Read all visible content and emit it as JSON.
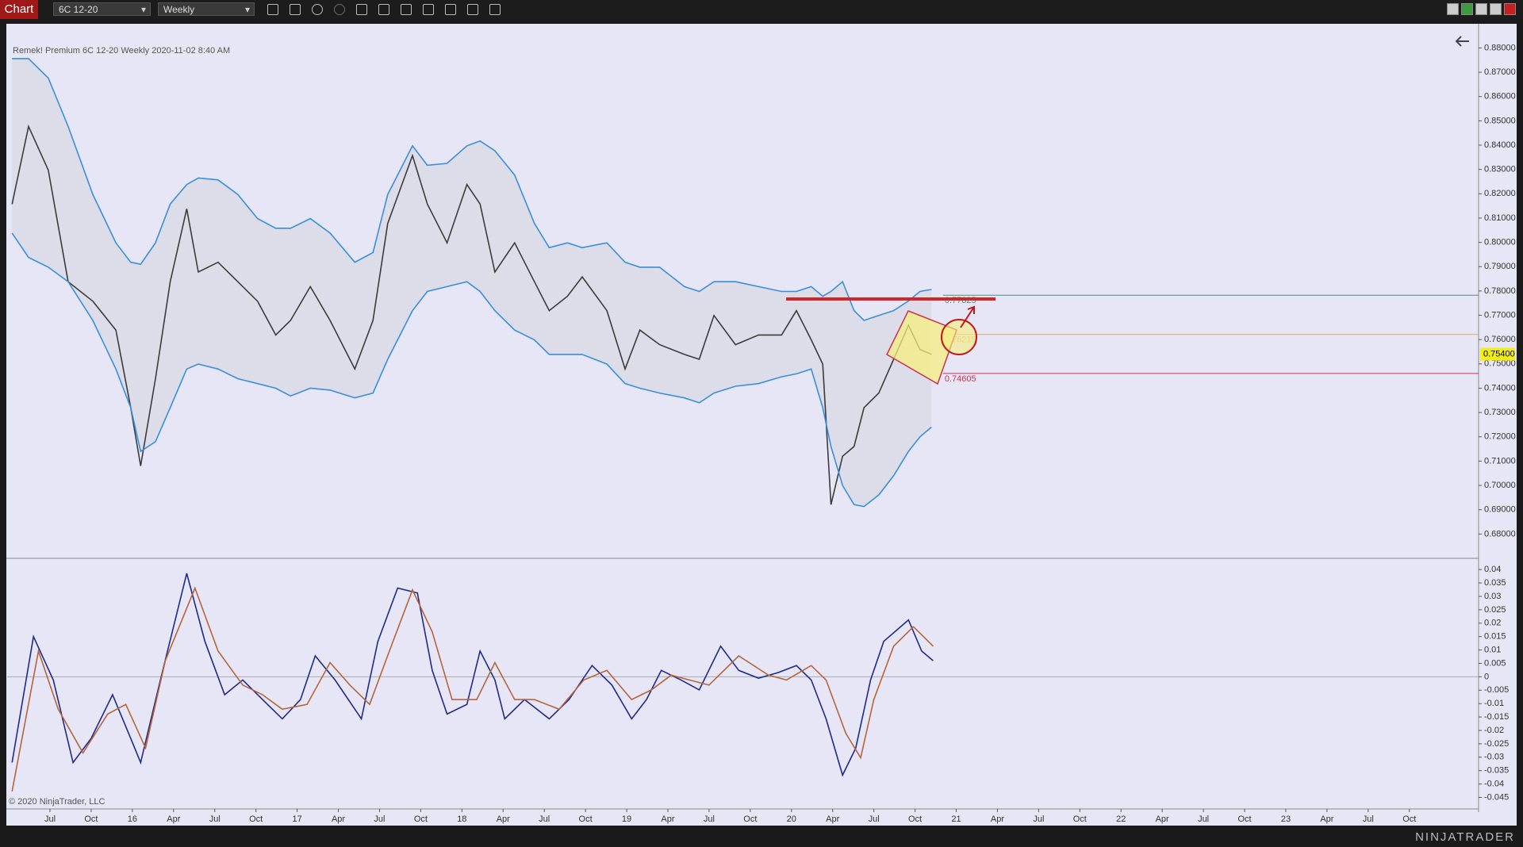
{
  "toolbar": {
    "title": "Chart",
    "instrument": "6C 12-20",
    "period": "Weekly"
  },
  "header": "Remek!  Premium  6C 12-20  Weekly  2020-11-02 8:40 AM",
  "copyright": "© 2020 NinjaTrader, LLC",
  "logo": "NINJATRADER",
  "chart_data": [
    {
      "type": "line",
      "x": [
        2015.27,
        2015.37,
        2015.49,
        2015.61,
        2015.76,
        2015.9,
        2015.99,
        2016.05,
        2016.14,
        2016.23,
        2016.33,
        2016.4,
        2016.52,
        2016.64,
        2016.76,
        2016.87,
        2016.96,
        2017.08,
        2017.2,
        2017.35,
        2017.46,
        2017.55,
        2017.7,
        2017.79,
        2017.91,
        2018.03,
        2018.11,
        2018.2,
        2018.32,
        2018.44,
        2018.53,
        2018.64,
        2018.73,
        2018.88,
        2018.99,
        2019.08,
        2019.2,
        2019.35,
        2019.44,
        2019.53,
        2019.66,
        2019.8,
        2019.94,
        2020.03,
        2020.12,
        2020.19,
        2020.24,
        2020.31,
        2020.38,
        2020.44,
        2020.53,
        2020.62,
        2020.71,
        2020.78,
        2020.85
      ],
      "series": [
        {
          "color": "#3b3b3b",
          "values": [
            0.8157,
            0.8477,
            0.8297,
            0.7838,
            0.7758,
            0.7639,
            0.732,
            0.708,
            0.7439,
            0.7838,
            0.8138,
            0.7878,
            0.7918,
            0.7838,
            0.7758,
            0.7619,
            0.7679,
            0.7818,
            0.7679,
            0.7479,
            0.7679,
            0.8078,
            0.8357,
            0.8158,
            0.7998,
            0.8238,
            0.8158,
            0.7878,
            0.7998,
            0.7838,
            0.7719,
            0.7778,
            0.7858,
            0.7719,
            0.7479,
            0.7639,
            0.7579,
            0.7539,
            0.7519,
            0.7699,
            0.7579,
            0.7619,
            0.7619,
            0.7719,
            0.7599,
            0.7499,
            0.6921,
            0.712,
            0.716,
            0.732,
            0.738,
            0.7519,
            0.7659,
            0.7559,
            0.754
          ]
        },
        {
          "color": "#3a8fd8",
          "values": [
            0.8756,
            0.8756,
            0.8676,
            0.8477,
            0.8197,
            0.7998,
            0.7918,
            0.791,
            0.7998,
            0.8158,
            0.8238,
            0.8265,
            0.8257,
            0.8197,
            0.8098,
            0.8058,
            0.8058,
            0.8098,
            0.8038,
            0.7918,
            0.7958,
            0.8197,
            0.8397,
            0.8317,
            0.8325,
            0.8397,
            0.8417,
            0.8377,
            0.8277,
            0.8078,
            0.7978,
            0.7998,
            0.7978,
            0.7998,
            0.7918,
            0.7898,
            0.7898,
            0.7818,
            0.7798,
            0.7838,
            0.7838,
            0.7818,
            0.7798,
            0.7798,
            0.7818,
            0.7778,
            0.7798,
            0.7838,
            0.7719,
            0.7679,
            0.7699,
            0.7719,
            0.7759,
            0.7798,
            0.7806
          ]
        },
        {
          "color": "#3a8fd8",
          "values": [
            0.8038,
            0.7938,
            0.7898,
            0.7838,
            0.7679,
            0.7479,
            0.732,
            0.714,
            0.718,
            0.732,
            0.7479,
            0.7499,
            0.7479,
            0.7439,
            0.7419,
            0.74,
            0.7368,
            0.74,
            0.7392,
            0.736,
            0.738,
            0.7519,
            0.7719,
            0.7798,
            0.7818,
            0.7838,
            0.7798,
            0.7719,
            0.7639,
            0.7599,
            0.7539,
            0.7539,
            0.7539,
            0.7499,
            0.7419,
            0.74,
            0.738,
            0.736,
            0.734,
            0.738,
            0.7408,
            0.7419,
            0.7447,
            0.7459,
            0.7479,
            0.732,
            0.716,
            0.7,
            0.6921,
            0.6913,
            0.6961,
            0.704,
            0.714,
            0.72,
            0.724
          ]
        }
      ],
      "band_fill": "#d9d9e4",
      "levels": [
        {
          "value": 0.77825,
          "color": "#4f8f7a"
        },
        {
          "value": 0.76215,
          "color": "#e0b060"
        },
        {
          "value": 0.74605,
          "color": "#d03050"
        }
      ],
      "last_price": {
        "value": 0.754,
        "label": "0.75400"
      },
      "xlim": [
        2015.24,
        2024.17
      ],
      "ylim": [
        0.67,
        0.8896
      ],
      "yticks": [
        {
          "value": 0.68,
          "label": "0.68000"
        },
        {
          "value": 0.69,
          "label": "0.69000"
        },
        {
          "value": 0.7,
          "label": "0.70000"
        },
        {
          "value": 0.71,
          "label": "0.71000"
        },
        {
          "value": 0.72,
          "label": "0.72000"
        },
        {
          "value": 0.73,
          "label": "0.73000"
        },
        {
          "value": 0.74,
          "label": "0.74000"
        },
        {
          "value": 0.75,
          "label": "0.75000"
        },
        {
          "value": 0.76,
          "label": "0.76000"
        },
        {
          "value": 0.77,
          "label": "0.77000"
        },
        {
          "value": 0.78,
          "label": "0.78000"
        },
        {
          "value": 0.79,
          "label": "0.79000"
        },
        {
          "value": 0.8,
          "label": "0.80000"
        },
        {
          "value": 0.81,
          "label": "0.81000"
        },
        {
          "value": 0.82,
          "label": "0.82000"
        },
        {
          "value": 0.83,
          "label": "0.83000"
        },
        {
          "value": 0.84,
          "label": "0.84000"
        },
        {
          "value": 0.85,
          "label": "0.85000"
        },
        {
          "value": 0.86,
          "label": "0.86000"
        },
        {
          "value": 0.87,
          "label": "0.87000"
        },
        {
          "value": 0.88,
          "label": "0.88000"
        }
      ],
      "xticks": [
        {
          "value": 2015.5,
          "label": "Jul"
        },
        {
          "value": 2015.75,
          "label": "Oct"
        },
        {
          "value": 2016,
          "label": "16"
        },
        {
          "value": 2016.25,
          "label": "Apr"
        },
        {
          "value": 2016.5,
          "label": "Jul"
        },
        {
          "value": 2016.75,
          "label": "Oct"
        },
        {
          "value": 2017,
          "label": "17"
        },
        {
          "value": 2017.25,
          "label": "Apr"
        },
        {
          "value": 2017.5,
          "label": "Jul"
        },
        {
          "value": 2017.75,
          "label": "Oct"
        },
        {
          "value": 2018,
          "label": "18"
        },
        {
          "value": 2018.25,
          "label": "Apr"
        },
        {
          "value": 2018.5,
          "label": "Jul"
        },
        {
          "value": 2018.75,
          "label": "Oct"
        },
        {
          "value": 2019,
          "label": "19"
        },
        {
          "value": 2019.25,
          "label": "Apr"
        },
        {
          "value": 2019.5,
          "label": "Jul"
        },
        {
          "value": 2019.75,
          "label": "Oct"
        },
        {
          "value": 2020,
          "label": "20"
        },
        {
          "value": 2020.25,
          "label": "Apr"
        },
        {
          "value": 2020.5,
          "label": "Jul"
        },
        {
          "value": 2020.75,
          "label": "Oct"
        },
        {
          "value": 2021,
          "label": "21"
        },
        {
          "value": 2021.25,
          "label": "Apr"
        },
        {
          "value": 2021.5,
          "label": "Jul"
        },
        {
          "value": 2021.75,
          "label": "Oct"
        },
        {
          "value": 2022,
          "label": "22"
        },
        {
          "value": 2022.25,
          "label": "Apr"
        },
        {
          "value": 2022.5,
          "label": "Jul"
        },
        {
          "value": 2022.75,
          "label": "Oct"
        },
        {
          "value": 2023,
          "label": "23"
        },
        {
          "value": 2023.25,
          "label": "Apr"
        },
        {
          "value": 2023.5,
          "label": "Jul"
        },
        {
          "value": 2023.75,
          "label": "Oct"
        }
      ]
    },
    {
      "type": "line",
      "series": [
        {
          "color": "#1f2a8a",
          "x": [
            2015.27,
            2015.4,
            2015.52,
            2015.64,
            2015.75,
            2015.88,
            2015.99,
            2016.05,
            2016.17,
            2016.33,
            2016.44,
            2016.56,
            2016.67,
            2016.79,
            2016.91,
            2017.02,
            2017.11,
            2017.23,
            2017.39,
            2017.49,
            2017.61,
            2017.73,
            2017.82,
            2017.91,
            2018.03,
            2018.11,
            2018.2,
            2018.26,
            2018.38,
            2018.53,
            2018.65,
            2018.79,
            2018.91,
            2019.03,
            2019.12,
            2019.21,
            2019.33,
            2019.44,
            2019.57,
            2019.68,
            2019.8,
            2019.92,
            2020.03,
            2020.12,
            2020.21,
            2020.31,
            2020.39,
            2020.48,
            2020.56,
            2020.71,
            2020.79,
            2020.86
          ],
          "values": [
            -0.032,
            0.015,
            -0.0012,
            -0.032,
            -0.023,
            -0.0067,
            -0.023,
            -0.032,
            -0.0012,
            0.0386,
            0.0132,
            -0.0067,
            -0.0012,
            -0.0085,
            -0.0157,
            -0.0085,
            0.0078,
            -0.0012,
            -0.0157,
            0.0132,
            0.0331,
            0.0313,
            0.0024,
            -0.0139,
            -0.0103,
            0.0096,
            -0.0012,
            -0.0157,
            -0.0085,
            -0.0157,
            -0.0085,
            0.0042,
            -0.0031,
            -0.0157,
            -0.0085,
            0.0024,
            -0.0012,
            -0.0049,
            0.0114,
            0.0024,
            -0.0005,
            0.0016,
            0.0042,
            -0.0012,
            -0.0157,
            -0.0367,
            -0.0266,
            -0.0012,
            0.0132,
            0.0212,
            0.0096,
            0.006
          ]
        },
        {
          "color": "#b5653a",
          "x": [
            2015.27,
            2015.43,
            2015.55,
            2015.7,
            2015.85,
            2015.96,
            2016.08,
            2016.2,
            2016.38,
            2016.52,
            2016.67,
            2016.79,
            2016.91,
            2017.06,
            2017.2,
            2017.32,
            2017.44,
            2017.56,
            2017.7,
            2017.82,
            2017.94,
            2018.09,
            2018.2,
            2018.32,
            2018.44,
            2018.59,
            2018.74,
            2018.88,
            2019.03,
            2019.15,
            2019.27,
            2019.38,
            2019.5,
            2019.68,
            2019.86,
            2019.97,
            2020.12,
            2020.21,
            2020.33,
            2020.42,
            2020.5,
            2020.62,
            2020.74,
            2020.86
          ],
          "values": [
            -0.0428,
            0.0096,
            -0.0121,
            -0.0284,
            -0.0139,
            -0.0103,
            -0.0266,
            0.006,
            0.0331,
            0.0096,
            -0.0031,
            -0.0067,
            -0.0121,
            -0.0103,
            0.0053,
            -0.0031,
            -0.0103,
            0.0096,
            0.0324,
            0.0168,
            -0.0085,
            -0.0085,
            0.0053,
            -0.0085,
            -0.0085,
            -0.0121,
            -0.0012,
            0.0024,
            -0.0085,
            -0.0049,
            0.0006,
            -0.0012,
            -0.0031,
            0.0078,
            0.0006,
            -0.0012,
            0.0042,
            -0.0012,
            -0.0211,
            -0.0302,
            -0.0085,
            0.0114,
            0.0187,
            0.0114
          ]
        }
      ],
      "xlim": [
        2015.24,
        2024.17
      ],
      "ylim": [
        -0.049,
        0.0433
      ],
      "yticks": [
        -0.045,
        -0.04,
        -0.035,
        -0.03,
        -0.025,
        -0.02,
        -0.015,
        -0.01,
        -0.005,
        0,
        0.005,
        0.01,
        0.015,
        0.02,
        0.025,
        0.03,
        0.035,
        0.04
      ]
    }
  ]
}
